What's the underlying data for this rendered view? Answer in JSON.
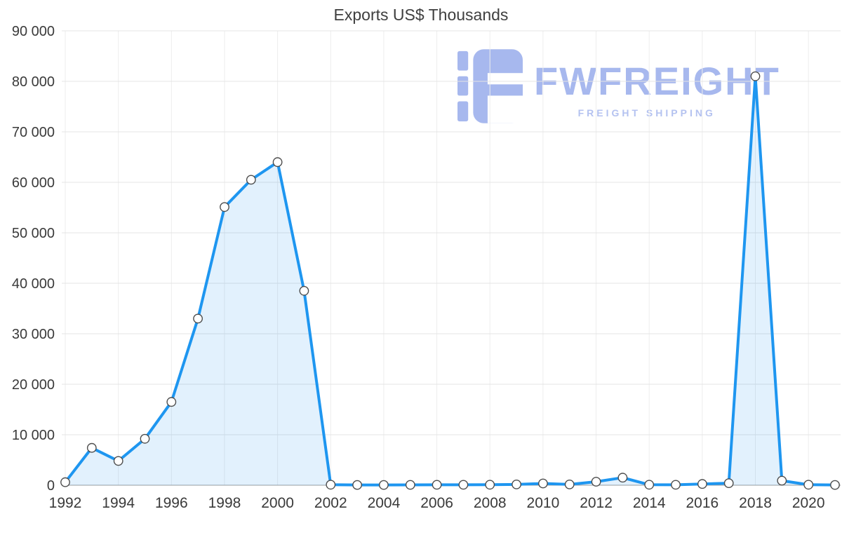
{
  "chart_data": {
    "type": "area",
    "title": "Exports US$ Thousands",
    "xlabel": "",
    "ylabel": "",
    "x": [
      1992,
      1993,
      1994,
      1995,
      1996,
      1997,
      1998,
      1999,
      2000,
      2001,
      2002,
      2003,
      2004,
      2005,
      2006,
      2007,
      2008,
      2009,
      2010,
      2011,
      2012,
      2013,
      2014,
      2015,
      2016,
      2017,
      2018,
      2019,
      2020,
      2021
    ],
    "values": [
      600,
      7400,
      4800,
      9200,
      16500,
      33000,
      55100,
      60500,
      64000,
      38500,
      100,
      60,
      60,
      70,
      80,
      90,
      100,
      150,
      350,
      150,
      700,
      1500,
      100,
      80,
      250,
      400,
      81000,
      900,
      100,
      50
    ],
    "ylim": [
      0,
      90000
    ],
    "ytick_step": 10000,
    "ytick_labels": [
      "0",
      "10 000",
      "20 000",
      "30 000",
      "40 000",
      "50 000",
      "60 000",
      "70 000",
      "80 000",
      "90 000"
    ],
    "xtick_labels": [
      "1992",
      "1994",
      "1996",
      "1998",
      "2000",
      "2002",
      "2004",
      "2006",
      "2008",
      "2010",
      "2012",
      "2014",
      "2016",
      "2018",
      "2020"
    ],
    "grid": true,
    "legend": "none",
    "colors": {
      "line": "#1e96f0",
      "area": "rgba(33,150,243,0.13)",
      "marker_stroke": "#4d4d4d",
      "marker_fill": "#ffffff",
      "grid_h": "#e4e4e4",
      "grid_v": "#ededed",
      "axis": "#9c9c9c",
      "tick_text": "#3a3a3a",
      "title_text": "#3f3f3f"
    }
  },
  "watermark": {
    "brand": "FWFREIGHT",
    "tagline": "FREIGHT SHIPPING",
    "color": "#a7b8ee"
  }
}
